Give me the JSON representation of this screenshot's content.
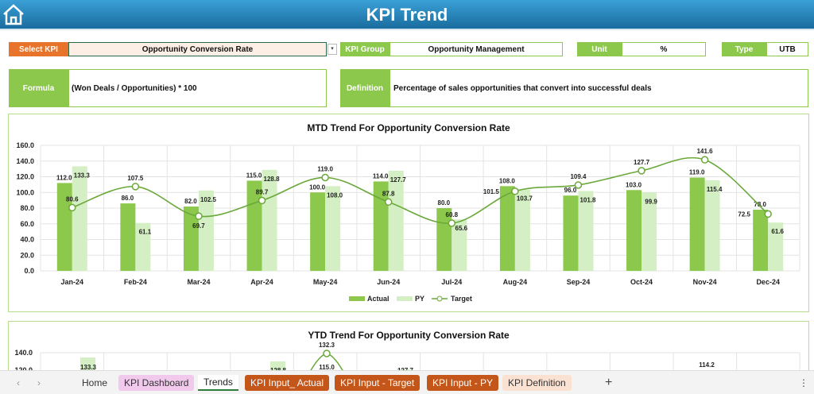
{
  "header": {
    "title": "KPI Trend",
    "home_icon": "home-icon"
  },
  "select_kpi": {
    "label": "Select KPI",
    "value": "Opportunity Conversion Rate"
  },
  "kpi_group": {
    "label": "KPI Group",
    "value": "Opportunity Management"
  },
  "unit": {
    "label": "Unit",
    "value": "%"
  },
  "type": {
    "label": "Type",
    "value": "UTB"
  },
  "formula": {
    "label": "Formula",
    "value": "(Won Deals / Opportunities) * 100"
  },
  "definition": {
    "label": "Definition",
    "value": "Percentage of sales opportunities that convert into successful deals"
  },
  "colors": {
    "actual": "#8cc84b",
    "py": "#d4efc4",
    "target": "#6aa83a",
    "label_orange": "#e8732a",
    "header": "#1f78ad"
  },
  "chart_data": [
    {
      "type": "bar",
      "title": "MTD Trend For Opportunity Conversion Rate",
      "ylim": [
        0,
        160
      ],
      "yticks": [
        "0.0",
        "20.0",
        "40.0",
        "60.0",
        "80.0",
        "100.0",
        "120.0",
        "140.0",
        "160.0"
      ],
      "grid": true,
      "legend": "bottom",
      "categories": [
        "Jan-24",
        "Feb-24",
        "Mar-24",
        "Apr-24",
        "May-24",
        "Jun-24",
        "Jul-24",
        "Aug-24",
        "Sep-24",
        "Oct-24",
        "Nov-24",
        "Dec-24"
      ],
      "series": [
        {
          "name": "Actual",
          "type": "bar",
          "values": [
            112.0,
            86.0,
            82.0,
            115.0,
            100.0,
            114.0,
            80.0,
            108.0,
            96.0,
            103.0,
            119.0,
            78.0
          ]
        },
        {
          "name": "PY",
          "type": "bar",
          "values": [
            133.3,
            61.1,
            102.5,
            128.8,
            108.0,
            127.7,
            65.6,
            103.7,
            101.8,
            99.9,
            115.4,
            61.6
          ]
        },
        {
          "name": "Target",
          "type": "line",
          "values": [
            80.6,
            107.5,
            69.7,
            89.7,
            119.0,
            87.8,
            60.8,
            101.5,
            109.4,
            127.7,
            141.6,
            72.5
          ]
        }
      ]
    },
    {
      "type": "bar",
      "title": "YTD Trend For Opportunity Conversion Rate",
      "yticks": [
        "140.0",
        "120.0"
      ],
      "grid": true,
      "visible_labels": [
        "133.3",
        "128.8",
        "132.3",
        "115.0",
        "127.7",
        "114.2"
      ]
    }
  ],
  "tabs": {
    "items": [
      "Home",
      "KPI Dashboard",
      "Trends",
      "KPI Input_ Actual",
      "KPI Input - Target",
      "KPI Input - PY",
      "KPI Definition"
    ],
    "active": "Trends",
    "add": "+",
    "prev": "‹",
    "next": "›",
    "more": "⋮"
  }
}
